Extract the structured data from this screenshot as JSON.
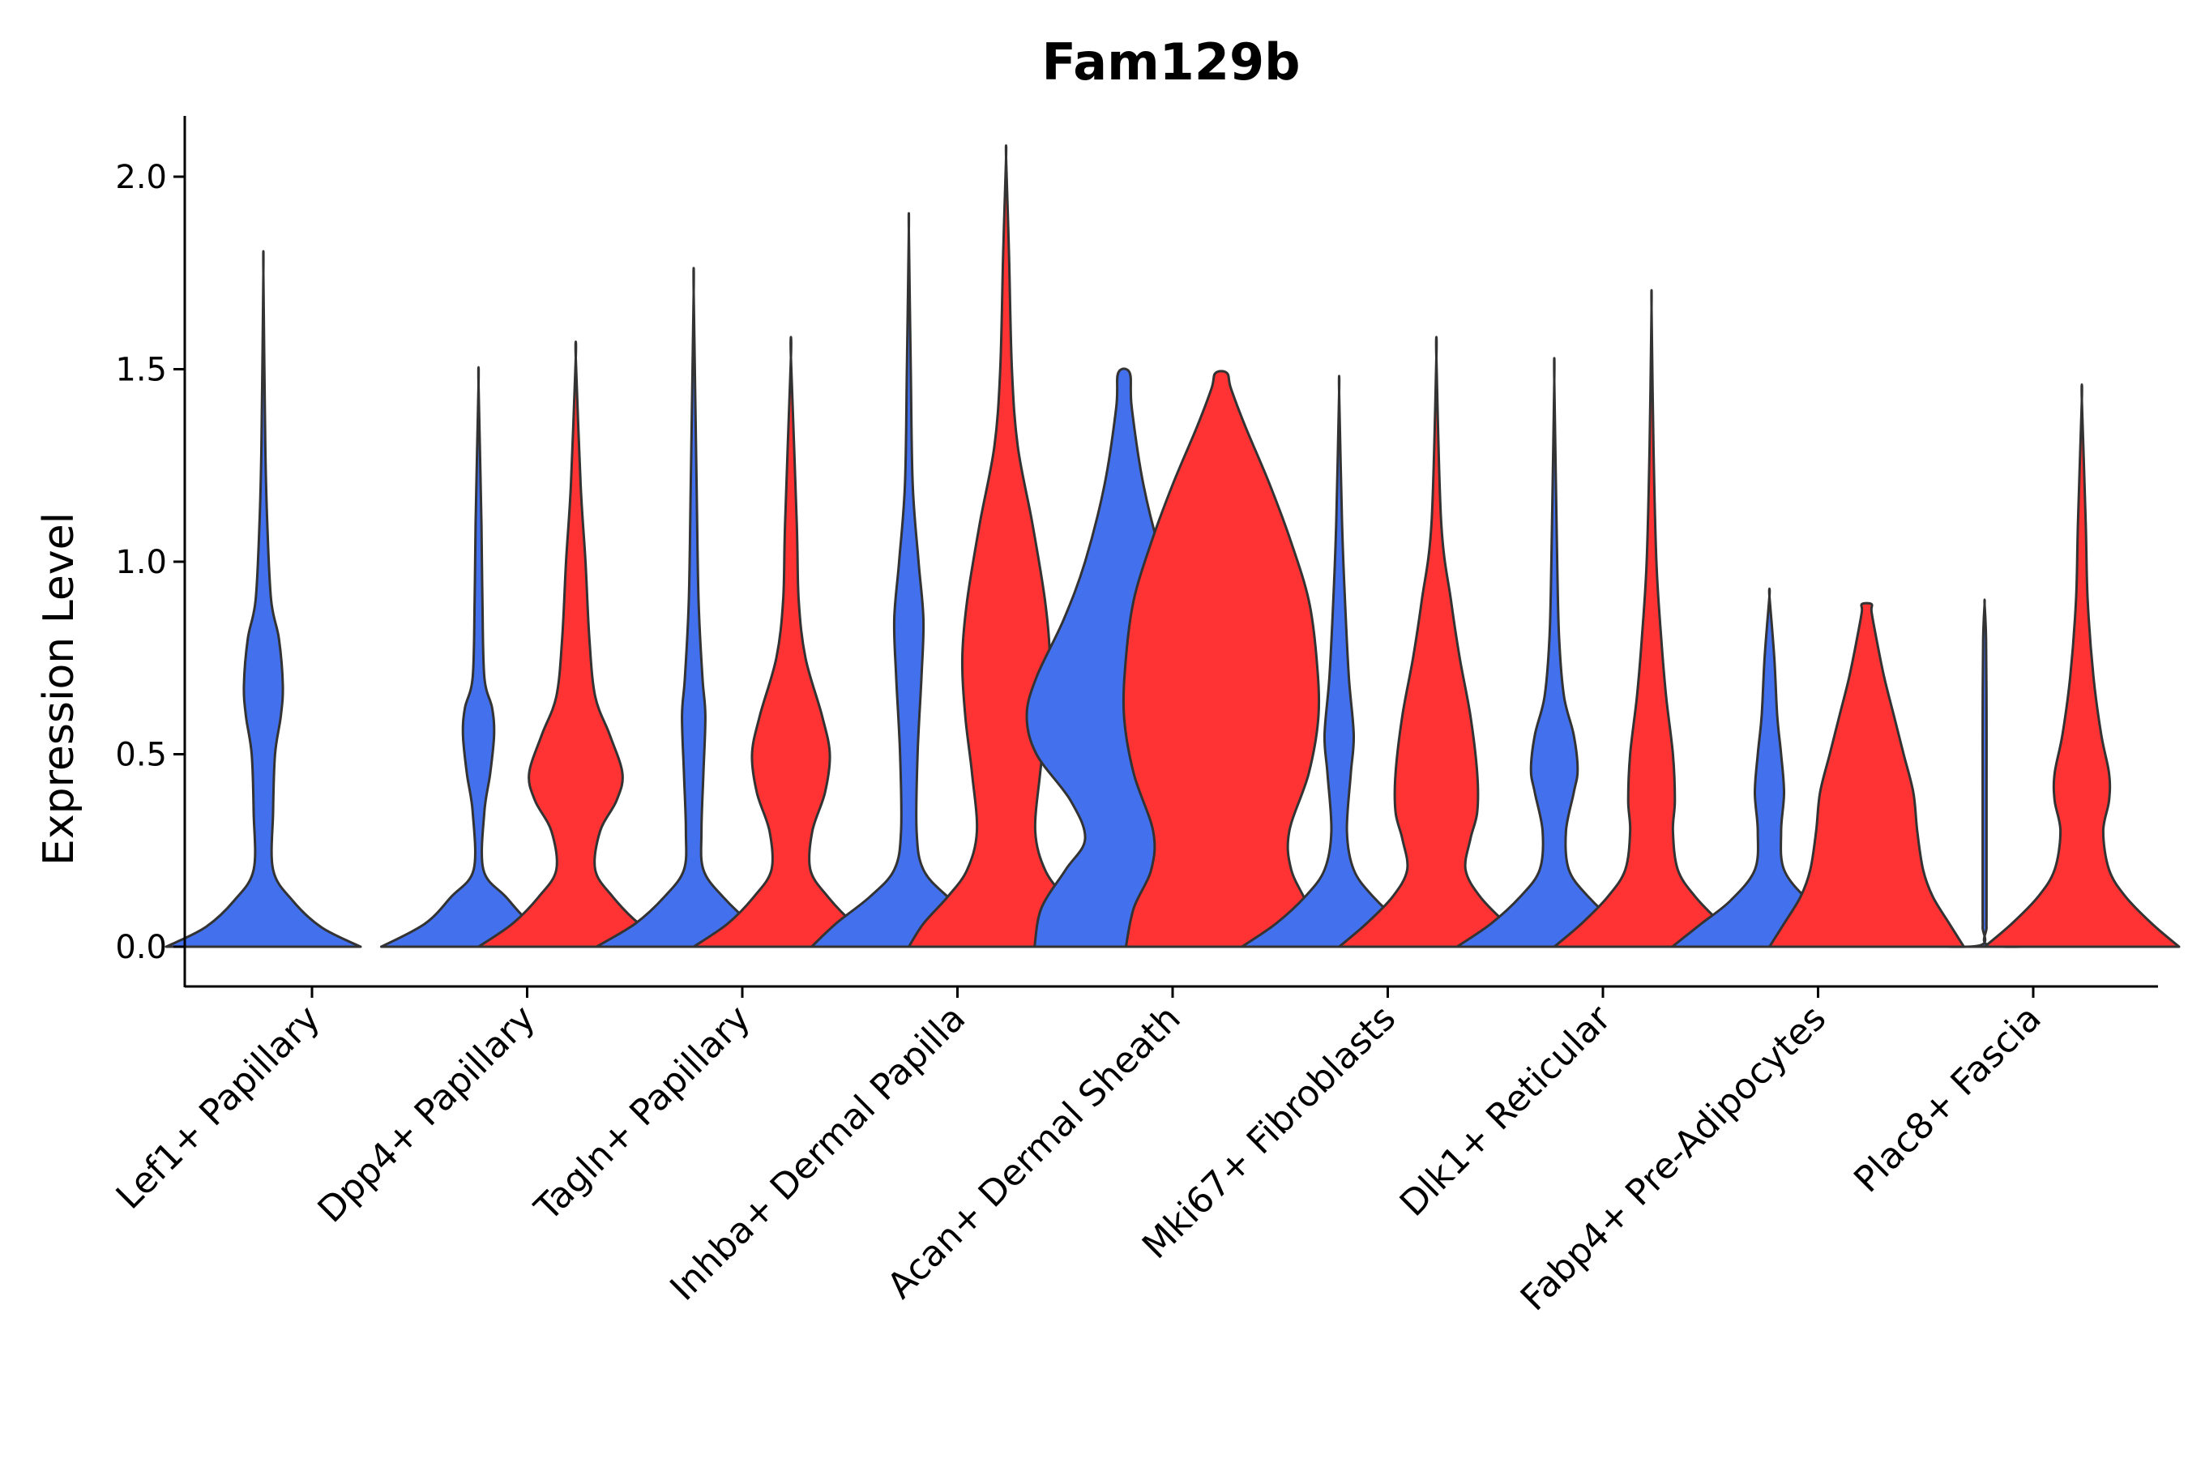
{
  "chart_data": {
    "type": "violin",
    "title": "Fam129b",
    "xlabel": "",
    "ylabel": "Expression Level",
    "ylim": [
      -0.1,
      2.15
    ],
    "yticks": [
      "0.0",
      "0.5",
      "1.0",
      "1.5",
      "2.0"
    ],
    "series_colors": [
      "#4370EC",
      "#FF3333"
    ],
    "categories": [
      "Lef1+ Papillary",
      "Dpp4+ Papillary",
      "Tagln+ Papillary",
      "Inhba+ Dermal Papilla",
      "Acan+ Dermal Sheath",
      "Mki67+ Fibroblasts",
      "Dlk1+ Reticular",
      "Fabp4+ Pre-Adipocytes",
      "Plac8+ Fascia"
    ],
    "violins": [
      {
        "category": "Lef1+ Papillary",
        "group": 0,
        "max": 1.75,
        "profile": [
          [
            0,
            1.0
          ],
          [
            0.05,
            0.6
          ],
          [
            0.12,
            0.3
          ],
          [
            0.2,
            0.1
          ],
          [
            0.35,
            0.1
          ],
          [
            0.5,
            0.12
          ],
          [
            0.6,
            0.18
          ],
          [
            0.68,
            0.2
          ],
          [
            0.8,
            0.16
          ],
          [
            0.9,
            0.08
          ],
          [
            1.1,
            0.04
          ],
          [
            1.3,
            0.02
          ],
          [
            1.75,
            0.0
          ]
        ]
      },
      {
        "category": "Dpp4+ Papillary",
        "group": 0,
        "max": 1.46,
        "profile": [
          [
            0,
            1.0
          ],
          [
            0.06,
            0.55
          ],
          [
            0.13,
            0.28
          ],
          [
            0.2,
            0.05
          ],
          [
            0.35,
            0.06
          ],
          [
            0.45,
            0.12
          ],
          [
            0.55,
            0.16
          ],
          [
            0.62,
            0.14
          ],
          [
            0.7,
            0.06
          ],
          [
            0.9,
            0.04
          ],
          [
            1.1,
            0.03
          ],
          [
            1.46,
            0.0
          ]
        ]
      },
      {
        "category": "Dpp4+ Papillary",
        "group": 1,
        "max": 1.53,
        "profile": [
          [
            0,
            1.0
          ],
          [
            0.06,
            0.65
          ],
          [
            0.13,
            0.38
          ],
          [
            0.2,
            0.2
          ],
          [
            0.3,
            0.25
          ],
          [
            0.38,
            0.42
          ],
          [
            0.45,
            0.48
          ],
          [
            0.55,
            0.35
          ],
          [
            0.65,
            0.2
          ],
          [
            0.8,
            0.14
          ],
          [
            1.0,
            0.1
          ],
          [
            1.2,
            0.05
          ],
          [
            1.53,
            0.0
          ]
        ]
      },
      {
        "category": "Tagln+ Papillary",
        "group": 0,
        "max": 1.7,
        "profile": [
          [
            0,
            1.0
          ],
          [
            0.06,
            0.6
          ],
          [
            0.13,
            0.3
          ],
          [
            0.2,
            0.1
          ],
          [
            0.3,
            0.08
          ],
          [
            0.45,
            0.1
          ],
          [
            0.6,
            0.12
          ],
          [
            0.7,
            0.09
          ],
          [
            0.9,
            0.05
          ],
          [
            1.2,
            0.03
          ],
          [
            1.7,
            0.0
          ]
        ]
      },
      {
        "category": "Tagln+ Papillary",
        "group": 1,
        "max": 1.53,
        "profile": [
          [
            0,
            1.0
          ],
          [
            0.06,
            0.65
          ],
          [
            0.13,
            0.38
          ],
          [
            0.2,
            0.2
          ],
          [
            0.3,
            0.22
          ],
          [
            0.4,
            0.35
          ],
          [
            0.5,
            0.4
          ],
          [
            0.6,
            0.32
          ],
          [
            0.75,
            0.15
          ],
          [
            0.9,
            0.08
          ],
          [
            1.1,
            0.06
          ],
          [
            1.53,
            0.0
          ]
        ]
      },
      {
        "category": "Inhba+ Dermal Papilla",
        "group": 0,
        "max": 1.86,
        "profile": [
          [
            0,
            1.0
          ],
          [
            0.06,
            0.75
          ],
          [
            0.13,
            0.4
          ],
          [
            0.2,
            0.15
          ],
          [
            0.3,
            0.08
          ],
          [
            0.5,
            0.09
          ],
          [
            0.7,
            0.13
          ],
          [
            0.85,
            0.15
          ],
          [
            1.0,
            0.1
          ],
          [
            1.2,
            0.04
          ],
          [
            1.5,
            0.02
          ],
          [
            1.86,
            0.0
          ]
        ]
      },
      {
        "category": "Inhba+ Dermal Papilla",
        "group": 1,
        "max": 2.05,
        "profile": [
          [
            0,
            1.0
          ],
          [
            0.06,
            0.85
          ],
          [
            0.13,
            0.6
          ],
          [
            0.2,
            0.4
          ],
          [
            0.3,
            0.3
          ],
          [
            0.45,
            0.35
          ],
          [
            0.6,
            0.42
          ],
          [
            0.75,
            0.45
          ],
          [
            0.9,
            0.4
          ],
          [
            1.1,
            0.27
          ],
          [
            1.3,
            0.12
          ],
          [
            1.5,
            0.06
          ],
          [
            1.8,
            0.03
          ],
          [
            2.05,
            0.0
          ]
        ]
      },
      {
        "category": "Acan+ Dermal Sheath",
        "group": 0,
        "max": 1.49,
        "profile": [
          [
            0,
            0.92
          ],
          [
            0.1,
            0.85
          ],
          [
            0.2,
            0.6
          ],
          [
            0.28,
            0.4
          ],
          [
            0.38,
            0.55
          ],
          [
            0.5,
            0.9
          ],
          [
            0.6,
            1.0
          ],
          [
            0.7,
            0.9
          ],
          [
            0.85,
            0.62
          ],
          [
            1.0,
            0.4
          ],
          [
            1.2,
            0.2
          ],
          [
            1.4,
            0.08
          ],
          [
            1.49,
            0.06
          ]
        ]
      },
      {
        "category": "Acan+ Dermal Sheath",
        "group": 1,
        "max": 1.49,
        "profile": [
          [
            0,
            0.98
          ],
          [
            0.1,
            0.9
          ],
          [
            0.2,
            0.72
          ],
          [
            0.3,
            0.7
          ],
          [
            0.45,
            0.9
          ],
          [
            0.6,
            1.0
          ],
          [
            0.75,
            0.98
          ],
          [
            0.9,
            0.9
          ],
          [
            1.05,
            0.72
          ],
          [
            1.2,
            0.5
          ],
          [
            1.35,
            0.25
          ],
          [
            1.45,
            0.1
          ],
          [
            1.49,
            0.06
          ]
        ]
      },
      {
        "category": "Mki67+ Fibroblasts",
        "group": 0,
        "max": 1.44,
        "profile": [
          [
            0,
            1.0
          ],
          [
            0.06,
            0.65
          ],
          [
            0.13,
            0.35
          ],
          [
            0.2,
            0.15
          ],
          [
            0.3,
            0.08
          ],
          [
            0.45,
            0.12
          ],
          [
            0.55,
            0.15
          ],
          [
            0.7,
            0.1
          ],
          [
            0.9,
            0.06
          ],
          [
            1.1,
            0.03
          ],
          [
            1.44,
            0.0
          ]
        ]
      },
      {
        "category": "Mki67+ Fibroblasts",
        "group": 1,
        "max": 1.53,
        "profile": [
          [
            0,
            1.0
          ],
          [
            0.06,
            0.72
          ],
          [
            0.13,
            0.45
          ],
          [
            0.2,
            0.3
          ],
          [
            0.28,
            0.35
          ],
          [
            0.35,
            0.42
          ],
          [
            0.45,
            0.42
          ],
          [
            0.6,
            0.35
          ],
          [
            0.75,
            0.24
          ],
          [
            0.9,
            0.15
          ],
          [
            1.1,
            0.05
          ],
          [
            1.53,
            0.0
          ]
        ]
      },
      {
        "category": "Dlk1+ Reticular",
        "group": 0,
        "max": 1.47,
        "profile": [
          [
            0,
            1.0
          ],
          [
            0.06,
            0.65
          ],
          [
            0.13,
            0.35
          ],
          [
            0.2,
            0.15
          ],
          [
            0.3,
            0.12
          ],
          [
            0.4,
            0.2
          ],
          [
            0.46,
            0.24
          ],
          [
            0.55,
            0.2
          ],
          [
            0.65,
            0.1
          ],
          [
            0.8,
            0.05
          ],
          [
            1.0,
            0.03
          ],
          [
            1.47,
            0.0
          ]
        ]
      },
      {
        "category": "Dlk1+ Reticular",
        "group": 1,
        "max": 1.66,
        "profile": [
          [
            0,
            1.0
          ],
          [
            0.06,
            0.72
          ],
          [
            0.13,
            0.45
          ],
          [
            0.2,
            0.27
          ],
          [
            0.3,
            0.22
          ],
          [
            0.38,
            0.24
          ],
          [
            0.5,
            0.22
          ],
          [
            0.65,
            0.15
          ],
          [
            0.8,
            0.1
          ],
          [
            1.0,
            0.05
          ],
          [
            1.3,
            0.02
          ],
          [
            1.66,
            0.0
          ]
        ]
      },
      {
        "category": "Fabp4+ Pre-Adipocytes",
        "group": 0,
        "max": 0.91,
        "profile": [
          [
            0,
            1.0
          ],
          [
            0.06,
            0.7
          ],
          [
            0.12,
            0.4
          ],
          [
            0.2,
            0.15
          ],
          [
            0.3,
            0.12
          ],
          [
            0.4,
            0.15
          ],
          [
            0.5,
            0.12
          ],
          [
            0.6,
            0.08
          ],
          [
            0.75,
            0.05
          ],
          [
            0.91,
            0.0
          ]
        ]
      },
      {
        "category": "Fabp4+ Pre-Adipocytes",
        "group": 1,
        "max": 0.89,
        "profile": [
          [
            0,
            1.0
          ],
          [
            0.06,
            0.85
          ],
          [
            0.13,
            0.68
          ],
          [
            0.2,
            0.58
          ],
          [
            0.3,
            0.52
          ],
          [
            0.4,
            0.48
          ],
          [
            0.5,
            0.38
          ],
          [
            0.6,
            0.28
          ],
          [
            0.7,
            0.18
          ],
          [
            0.8,
            0.1
          ],
          [
            0.87,
            0.05
          ],
          [
            0.89,
            0.05
          ]
        ]
      },
      {
        "category": "Plac8+ Fascia",
        "group": 0,
        "max": 0.89,
        "profile": [
          [
            0,
            0.48
          ],
          [
            0.005,
            0.03
          ],
          [
            0.05,
            0.02
          ],
          [
            0.1,
            0.02
          ],
          [
            0.4,
            0.02
          ],
          [
            0.6,
            0.02
          ],
          [
            0.8,
            0.015
          ],
          [
            0.89,
            0.0
          ]
        ]
      },
      {
        "category": "Plac8+ Fascia",
        "group": 1,
        "max": 1.42,
        "profile": [
          [
            0,
            1.0
          ],
          [
            0.06,
            0.72
          ],
          [
            0.13,
            0.45
          ],
          [
            0.2,
            0.28
          ],
          [
            0.3,
            0.22
          ],
          [
            0.38,
            0.28
          ],
          [
            0.45,
            0.28
          ],
          [
            0.55,
            0.2
          ],
          [
            0.7,
            0.12
          ],
          [
            0.9,
            0.06
          ],
          [
            1.1,
            0.04
          ],
          [
            1.42,
            0.0
          ]
        ]
      }
    ]
  }
}
